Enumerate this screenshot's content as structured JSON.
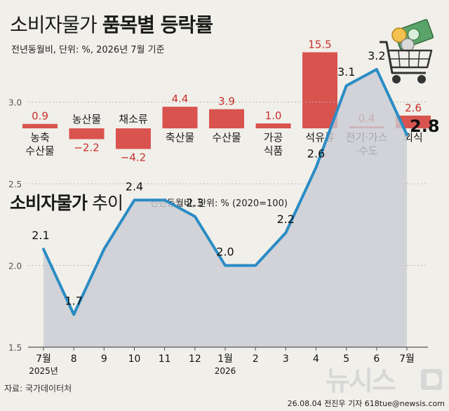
{
  "title_top": {
    "normal": "소비자물가",
    "bold": "품목별 등락률"
  },
  "subtitle_top": "전년동월비, 단위: %, 2026년 7월 기준",
  "title_bottom": {
    "bold": "소비자물가",
    "light": "추이"
  },
  "subtitle_bottom": "전년동월비, 단위: % (2020=100)",
  "source": "자료: 국가데이터처",
  "credit": "26.08.04 전진우 기자 618tue@newsis.com",
  "logo_text": "뉴시스",
  "colors": {
    "bar": "#d9534f",
    "line": "#2b8cc4",
    "area": "#c9ccd3",
    "label_red": "#c8302c",
    "text": "#1a1a1a"
  },
  "icon": "shopping-cart-with-money-icon",
  "chart_data": [
    {
      "type": "bar",
      "categories": [
        [
          "농축",
          "수산물"
        ],
        [
          "농산물"
        ],
        [
          "채소류"
        ],
        [
          "축산물"
        ],
        [
          "수산물"
        ],
        [
          "가공",
          "식품"
        ],
        [
          "석유류"
        ],
        [
          "전기·가스",
          "·수도"
        ],
        [
          "외식"
        ]
      ],
      "values": [
        0.9,
        -2.2,
        -4.2,
        4.4,
        3.9,
        1.0,
        15.5,
        0.4,
        2.6
      ],
      "value_labels": [
        "0.9",
        "−2.2",
        "−4.2",
        "4.4",
        "3.9",
        "1.0",
        "15.5",
        "0.4",
        "2.6"
      ]
    },
    {
      "type": "area",
      "x_labels": [
        "7월",
        "8",
        "9",
        "10",
        "11",
        "12",
        "1월",
        "2",
        "3",
        "4",
        "5",
        "6",
        "7월"
      ],
      "x_sublabels": [
        "2025년",
        "",
        "",
        "",
        "",
        "",
        "2026",
        "",
        "",
        "",
        "",
        "",
        ""
      ],
      "values": [
        2.1,
        1.7,
        2.1,
        2.4,
        2.4,
        2.3,
        2.0,
        2.0,
        2.2,
        2.6,
        3.1,
        3.2,
        2.8
      ],
      "value_labels": [
        "2.1",
        "1.7",
        "",
        "2.4",
        "",
        "2.3",
        "2.0",
        "",
        "2.2",
        "2.6",
        "3.1",
        "3.2",
        "2.8"
      ],
      "y_ticks": [
        "1.5",
        "2.0",
        "2.5",
        "3.0"
      ],
      "ylim": [
        1.5,
        3.2
      ],
      "grid": true
    }
  ]
}
